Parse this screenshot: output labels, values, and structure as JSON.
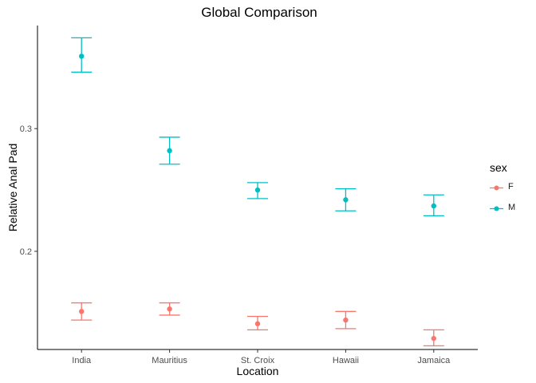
{
  "chart_data": {
    "type": "scatter",
    "title": "Global Comparison",
    "xlabel": "Location",
    "ylabel": "Relative Anal Pad",
    "categories": [
      "India",
      "Mauritius",
      "St. Croix",
      "Hawaii",
      "Jamaica"
    ],
    "yticks": [
      0.2,
      0.3
    ],
    "ytick_labels": [
      "0.2",
      "0.3"
    ],
    "ylim": [
      0.12,
      0.384
    ],
    "grid": false,
    "legend": {
      "title": "sex",
      "placement": "right"
    },
    "series": [
      {
        "name": "F",
        "color": "#F8766D",
        "values": [
          0.151,
          0.153,
          0.141,
          0.144,
          0.129
        ],
        "lower": [
          0.144,
          0.148,
          0.136,
          0.137,
          0.123
        ],
        "upper": [
          0.158,
          0.158,
          0.147,
          0.151,
          0.136
        ]
      },
      {
        "name": "M",
        "color": "#00BFC4",
        "values": [
          0.359,
          0.282,
          0.25,
          0.242,
          0.237
        ],
        "lower": [
          0.346,
          0.271,
          0.243,
          0.233,
          0.229
        ],
        "upper": [
          0.374,
          0.293,
          0.256,
          0.251,
          0.246
        ]
      }
    ]
  }
}
